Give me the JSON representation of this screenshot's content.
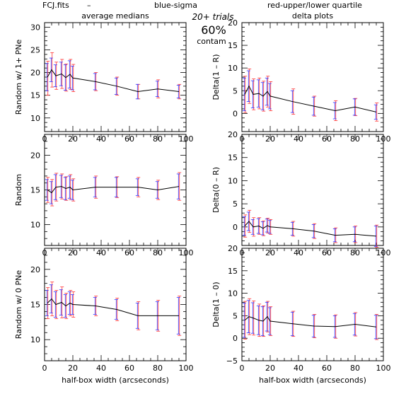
{
  "header": {
    "file": "FCJ.fits",
    "dash": "–",
    "blue_label": "blue-sigma",
    "red_label": "red-upper/lower quartile",
    "blue_color": "#3333ff",
    "red_color": "#ff3333",
    "trials": "20+ trials",
    "contam_pct": "60%",
    "contam_label": "contam"
  },
  "column_titles": {
    "left": "average medians",
    "right": "delta plots"
  },
  "chart_data": [
    {
      "type": "line",
      "panel": "left-top",
      "ylabel": "Random w/ 1+ PNe",
      "xlabel": "",
      "xlim": [
        0,
        100
      ],
      "ylim": [
        7,
        31
      ],
      "xticks": [
        0,
        20,
        40,
        60,
        80,
        100
      ],
      "yticks": [
        10,
        15,
        20,
        25,
        30
      ],
      "x": [
        2,
        5,
        8,
        12,
        15,
        18,
        20,
        36,
        51,
        66,
        80,
        95
      ],
      "y": [
        19,
        20.6,
        19.3,
        19.7,
        18.9,
        19.6,
        18.8,
        18.0,
        17.0,
        15.8,
        16.4,
        15.8
      ],
      "errors": [
        {
          "blue": [
            3.0,
            3.0
          ],
          "red": [
            4.0,
            3.5
          ]
        },
        {
          "blue": [
            2.6,
            2.6
          ],
          "red": [
            3.8,
            3.8
          ]
        },
        {
          "blue": [
            2.4,
            2.4
          ],
          "red": [
            3.0,
            3.0
          ]
        },
        {
          "blue": [
            2.6,
            2.6
          ],
          "red": [
            3.2,
            3.2
          ]
        },
        {
          "blue": [
            2.8,
            2.8
          ],
          "red": [
            3.0,
            3.0
          ]
        },
        {
          "blue": [
            3.0,
            3.0
          ],
          "red": [
            3.3,
            3.3
          ]
        },
        {
          "blue": [
            2.6,
            2.6
          ],
          "red": [
            3.0,
            3.0
          ]
        },
        {
          "blue": [
            1.8,
            1.8
          ],
          "red": [
            2.0,
            2.0
          ]
        },
        {
          "blue": [
            1.8,
            1.8
          ],
          "red": [
            2.0,
            2.0
          ]
        },
        {
          "blue": [
            1.6,
            1.6
          ],
          "red": [
            1.6,
            1.6
          ]
        },
        {
          "blue": [
            1.7,
            1.7
          ],
          "red": [
            2.0,
            2.0
          ]
        },
        {
          "blue": [
            1.4,
            1.4
          ],
          "red": [
            1.6,
            1.6
          ]
        }
      ]
    },
    {
      "type": "line",
      "panel": "right-top",
      "ylabel": "Delta(1 – R)",
      "xlabel": "",
      "xlim": [
        0,
        100
      ],
      "ylim": [
        -4,
        20
      ],
      "xticks": [
        0,
        20,
        40,
        60,
        80,
        100
      ],
      "yticks": [
        0,
        5,
        10,
        15,
        20
      ],
      "x": [
        2,
        5,
        8,
        12,
        15,
        18,
        20,
        36,
        51,
        66,
        80,
        95
      ],
      "y": [
        4.2,
        6.0,
        4.2,
        4.4,
        3.8,
        4.8,
        3.8,
        2.6,
        1.6,
        0.6,
        1.4,
        0.3
      ],
      "errors": [
        {
          "blue": [
            3.6,
            3.6
          ],
          "red": [
            4.0,
            4.0
          ]
        },
        {
          "blue": [
            3.4,
            3.4
          ],
          "red": [
            3.8,
            3.8
          ]
        },
        {
          "blue": [
            3.0,
            3.0
          ],
          "red": [
            3.4,
            3.4
          ]
        },
        {
          "blue": [
            3.0,
            3.0
          ],
          "red": [
            3.4,
            3.4
          ]
        },
        {
          "blue": [
            3.0,
            3.0
          ],
          "red": [
            3.3,
            3.3
          ]
        },
        {
          "blue": [
            3.0,
            3.0
          ],
          "red": [
            3.4,
            3.4
          ]
        },
        {
          "blue": [
            2.8,
            2.8
          ],
          "red": [
            3.2,
            3.2
          ]
        },
        {
          "blue": [
            2.4,
            2.4
          ],
          "red": [
            2.8,
            2.8
          ]
        },
        {
          "blue": [
            2.0,
            2.0
          ],
          "red": [
            2.2,
            2.2
          ]
        },
        {
          "blue": [
            1.8,
            1.8
          ],
          "red": [
            2.2,
            2.2
          ]
        },
        {
          "blue": [
            1.8,
            1.8
          ],
          "red": [
            1.9,
            1.9
          ]
        },
        {
          "blue": [
            1.6,
            1.6
          ],
          "red": [
            2.0,
            2.0
          ]
        }
      ]
    },
    {
      "type": "line",
      "panel": "left-middle",
      "ylabel": "Random",
      "xlabel": "",
      "xlim": [
        0,
        100
      ],
      "ylim": [
        7,
        23
      ],
      "xticks": [
        0,
        20,
        40,
        60,
        80,
        100
      ],
      "yticks": [
        10,
        15,
        20
      ],
      "x": [
        2,
        5,
        8,
        12,
        15,
        18,
        20,
        36,
        51,
        66,
        80,
        95
      ],
      "y": [
        15,
        14.6,
        15.4,
        15.5,
        15.2,
        15.4,
        15.0,
        15.4,
        15.4,
        15.4,
        15.0,
        15.5
      ],
      "errors": [
        {
          "blue": [
            1.5,
            1.5
          ],
          "red": [
            1.8,
            1.8
          ]
        },
        {
          "blue": [
            1.6,
            1.6
          ],
          "red": [
            1.9,
            1.9
          ]
        },
        {
          "blue": [
            1.8,
            1.8
          ],
          "red": [
            2.0,
            2.0
          ]
        },
        {
          "blue": [
            1.6,
            1.6
          ],
          "red": [
            1.8,
            1.8
          ]
        },
        {
          "blue": [
            1.6,
            1.6
          ],
          "red": [
            1.7,
            1.7
          ]
        },
        {
          "blue": [
            1.6,
            1.6
          ],
          "red": [
            1.8,
            1.8
          ]
        },
        {
          "blue": [
            1.4,
            1.4
          ],
          "red": [
            1.6,
            1.6
          ]
        },
        {
          "blue": [
            1.4,
            1.4
          ],
          "red": [
            1.6,
            1.6
          ]
        },
        {
          "blue": [
            1.4,
            1.4
          ],
          "red": [
            1.5,
            1.5
          ]
        },
        {
          "blue": [
            1.2,
            1.2
          ],
          "red": [
            1.4,
            1.4
          ]
        },
        {
          "blue": [
            1.2,
            1.2
          ],
          "red": [
            1.4,
            1.4
          ]
        },
        {
          "blue": [
            1.8,
            1.8
          ],
          "red": [
            2.0,
            2.0
          ]
        }
      ]
    },
    {
      "type": "line",
      "panel": "right-middle",
      "ylabel": "Delta(0 – R)",
      "xlabel": "",
      "xlim": [
        0,
        100
      ],
      "ylim": [
        -4,
        20
      ],
      "xticks": [
        0,
        20,
        40,
        60,
        80,
        100
      ],
      "yticks": [
        0,
        5,
        10,
        15,
        20
      ],
      "x": [
        2,
        5,
        8,
        12,
        15,
        18,
        20,
        36,
        51,
        66,
        80,
        95
      ],
      "y": [
        0.2,
        1.2,
        0.0,
        0.2,
        -0.3,
        0.3,
        0.0,
        -0.4,
        -0.9,
        -1.8,
        -1.6,
        -2.0
      ],
      "errors": [
        {
          "blue": [
            2.0,
            2.0
          ],
          "red": [
            2.4,
            2.4
          ]
        },
        {
          "blue": [
            2.0,
            2.0
          ],
          "red": [
            2.4,
            2.4
          ]
        },
        {
          "blue": [
            1.6,
            1.6
          ],
          "red": [
            2.0,
            2.0
          ]
        },
        {
          "blue": [
            1.6,
            1.6
          ],
          "red": [
            1.8,
            1.8
          ]
        },
        {
          "blue": [
            1.4,
            1.4
          ],
          "red": [
            1.6,
            1.6
          ]
        },
        {
          "blue": [
            1.4,
            1.4
          ],
          "red": [
            1.6,
            1.6
          ]
        },
        {
          "blue": [
            1.4,
            1.4
          ],
          "red": [
            1.6,
            1.6
          ]
        },
        {
          "blue": [
            1.4,
            1.4
          ],
          "red": [
            1.6,
            1.6
          ]
        },
        {
          "blue": [
            1.4,
            1.4
          ],
          "red": [
            1.6,
            1.6
          ]
        },
        {
          "blue": [
            1.4,
            1.4
          ],
          "red": [
            1.6,
            1.6
          ]
        },
        {
          "blue": [
            1.6,
            1.6
          ],
          "red": [
            1.8,
            1.8
          ]
        },
        {
          "blue": [
            2.2,
            2.2
          ],
          "red": [
            2.4,
            2.4
          ]
        }
      ]
    },
    {
      "type": "line",
      "panel": "left-bottom",
      "ylabel": "Random w/ 0 PNe",
      "xlabel": "half-box width (arcseconds)",
      "xlim": [
        0,
        100
      ],
      "ylim": [
        7,
        23
      ],
      "xticks": [
        0,
        20,
        40,
        60,
        80,
        100
      ],
      "yticks": [
        10,
        15,
        20
      ],
      "x": [
        2,
        5,
        8,
        12,
        15,
        18,
        20,
        36,
        51,
        66,
        80,
        95
      ],
      "y": [
        15.2,
        15.8,
        15.0,
        15.3,
        14.8,
        15.2,
        15.0,
        14.8,
        14.3,
        13.4,
        13.4,
        13.4
      ],
      "errors": [
        {
          "blue": [
            1.8,
            1.8
          ],
          "red": [
            2.2,
            2.2
          ]
        },
        {
          "blue": [
            2.0,
            2.0
          ],
          "red": [
            2.4,
            2.4
          ]
        },
        {
          "blue": [
            1.8,
            1.8
          ],
          "red": [
            2.0,
            2.0
          ]
        },
        {
          "blue": [
            1.8,
            1.8
          ],
          "red": [
            2.2,
            2.2
          ]
        },
        {
          "blue": [
            1.6,
            1.6
          ],
          "red": [
            1.8,
            1.8
          ]
        },
        {
          "blue": [
            1.6,
            1.6
          ],
          "red": [
            1.8,
            1.8
          ]
        },
        {
          "blue": [
            1.4,
            1.4
          ],
          "red": [
            1.8,
            1.8
          ]
        },
        {
          "blue": [
            1.2,
            1.2
          ],
          "red": [
            1.4,
            1.4
          ]
        },
        {
          "blue": [
            1.4,
            1.4
          ],
          "red": [
            1.6,
            1.6
          ]
        },
        {
          "blue": [
            1.8,
            1.8
          ],
          "red": [
            2.0,
            2.0
          ]
        },
        {
          "blue": [
            2.0,
            2.0
          ],
          "red": [
            2.2,
            2.2
          ]
        },
        {
          "blue": [
            2.6,
            2.6
          ],
          "red": [
            2.8,
            2.8
          ]
        }
      ]
    },
    {
      "type": "line",
      "panel": "right-bottom",
      "ylabel": "Delta(1 – 0)",
      "xlabel": "half-box width (arcseconds)",
      "xlim": [
        0,
        100
      ],
      "ylim": [
        -5,
        20
      ],
      "xticks": [
        0,
        20,
        40,
        60,
        80,
        100
      ],
      "yticks": [
        -5,
        0,
        5,
        10,
        15,
        20
      ],
      "x": [
        2,
        5,
        8,
        12,
        15,
        18,
        20,
        36,
        51,
        66,
        80,
        95
      ],
      "y": [
        4.0,
        4.8,
        4.5,
        4.0,
        3.8,
        4.8,
        3.8,
        3.2,
        2.7,
        2.6,
        3.1,
        2.5
      ],
      "errors": [
        {
          "blue": [
            3.8,
            3.8
          ],
          "red": [
            4.2,
            4.2
          ]
        },
        {
          "blue": [
            3.6,
            3.6
          ],
          "red": [
            4.0,
            4.0
          ]
        },
        {
          "blue": [
            3.4,
            3.4
          ],
          "red": [
            3.8,
            3.8
          ]
        },
        {
          "blue": [
            3.2,
            3.2
          ],
          "red": [
            3.6,
            3.6
          ]
        },
        {
          "blue": [
            3.2,
            3.2
          ],
          "red": [
            3.4,
            3.4
          ]
        },
        {
          "blue": [
            3.2,
            3.2
          ],
          "red": [
            3.4,
            3.4
          ]
        },
        {
          "blue": [
            3.0,
            3.0
          ],
          "red": [
            3.2,
            3.2
          ]
        },
        {
          "blue": [
            2.6,
            2.6
          ],
          "red": [
            2.8,
            2.8
          ]
        },
        {
          "blue": [
            2.4,
            2.4
          ],
          "red": [
            2.6,
            2.6
          ]
        },
        {
          "blue": [
            2.4,
            2.4
          ],
          "red": [
            2.6,
            2.6
          ]
        },
        {
          "blue": [
            2.4,
            2.4
          ],
          "red": [
            2.6,
            2.6
          ]
        },
        {
          "blue": [
            2.6,
            2.6
          ],
          "red": [
            2.8,
            2.8
          ]
        }
      ]
    }
  ]
}
